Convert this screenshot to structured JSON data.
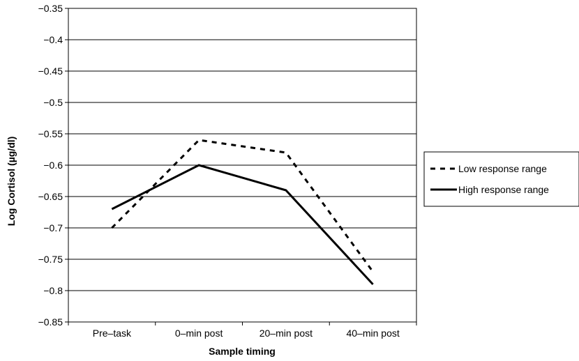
{
  "chart_data": {
    "type": "line",
    "title": "",
    "xlabel": "Sample timing",
    "ylabel": "Log Cortisol (µg/dl)",
    "categories": [
      "Pre–task",
      "0–min post",
      "20–min post",
      "40–min post"
    ],
    "ylim": [
      -0.85,
      -0.35
    ],
    "yticks": [
      "−0.35",
      "−0.4",
      "−0.45",
      "−0.5",
      "−0.55",
      "−0.6",
      "−0.65",
      "−0.7",
      "−0.75",
      "−0.8",
      "−0.85"
    ],
    "ytick_values": [
      -0.35,
      -0.4,
      -0.45,
      -0.5,
      -0.55,
      -0.6,
      -0.65,
      -0.7,
      -0.75,
      -0.8,
      -0.85
    ],
    "grid": true,
    "legend_position": "right",
    "series": [
      {
        "name": "Low response range",
        "style": "dashed",
        "color": "#000000",
        "values": [
          -0.7,
          -0.56,
          -0.58,
          -0.77
        ]
      },
      {
        "name": "High response range",
        "style": "solid",
        "color": "#000000",
        "values": [
          -0.67,
          -0.6,
          -0.64,
          -0.79
        ]
      }
    ]
  }
}
